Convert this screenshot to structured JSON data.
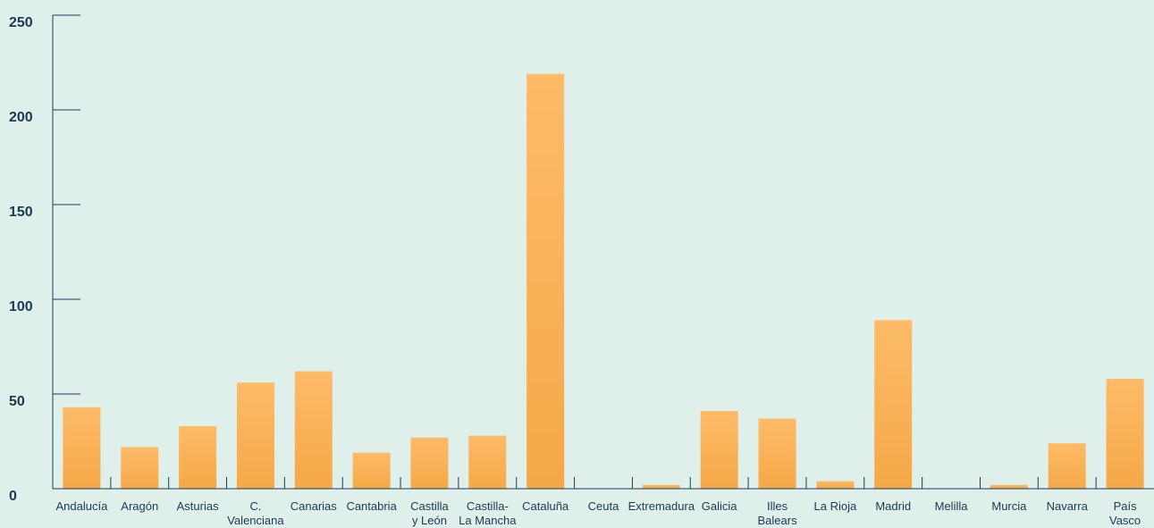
{
  "chart_data": {
    "type": "bar",
    "title": "",
    "xlabel": "",
    "ylabel": "",
    "ylim": [
      0,
      250
    ],
    "yticks": [
      0,
      50,
      100,
      150,
      200,
      250
    ],
    "grid": false,
    "bar_color_top": "#fdbb68",
    "bar_color_bottom": "#f5a847",
    "axis_color": "#1b3a52",
    "categories": [
      "Andalucía",
      "Aragón",
      "Asturias",
      "C. Valenciana",
      "Canarias",
      "Cantabria",
      "Castilla y León",
      "Castilla- La Mancha",
      "Cataluña",
      "Ceuta",
      "Extremadura",
      "Galicia",
      "Illes Balears",
      "La Rioja",
      "Madrid",
      "Melilla",
      "Murcia",
      "Navarra",
      "País Vasco"
    ],
    "category_lines": [
      [
        "Andalucía"
      ],
      [
        "Aragón"
      ],
      [
        "Asturias"
      ],
      [
        "C.",
        "Valenciana"
      ],
      [
        "Canarias"
      ],
      [
        "Cantabria"
      ],
      [
        "Castilla",
        "y León"
      ],
      [
        "Castilla-",
        "La Mancha"
      ],
      [
        "Cataluña"
      ],
      [
        "Ceuta"
      ],
      [
        "Extremadura"
      ],
      [
        "Galicia"
      ],
      [
        "Illes",
        "Balears"
      ],
      [
        "La Rioja"
      ],
      [
        "Madrid"
      ],
      [
        "Melilla"
      ],
      [
        "Murcia"
      ],
      [
        "Navarra"
      ],
      [
        "País",
        "Vasco"
      ]
    ],
    "values": [
      43,
      22,
      33,
      56,
      62,
      19,
      27,
      28,
      219,
      0,
      2,
      41,
      37,
      4,
      89,
      0,
      2,
      24,
      58
    ]
  }
}
